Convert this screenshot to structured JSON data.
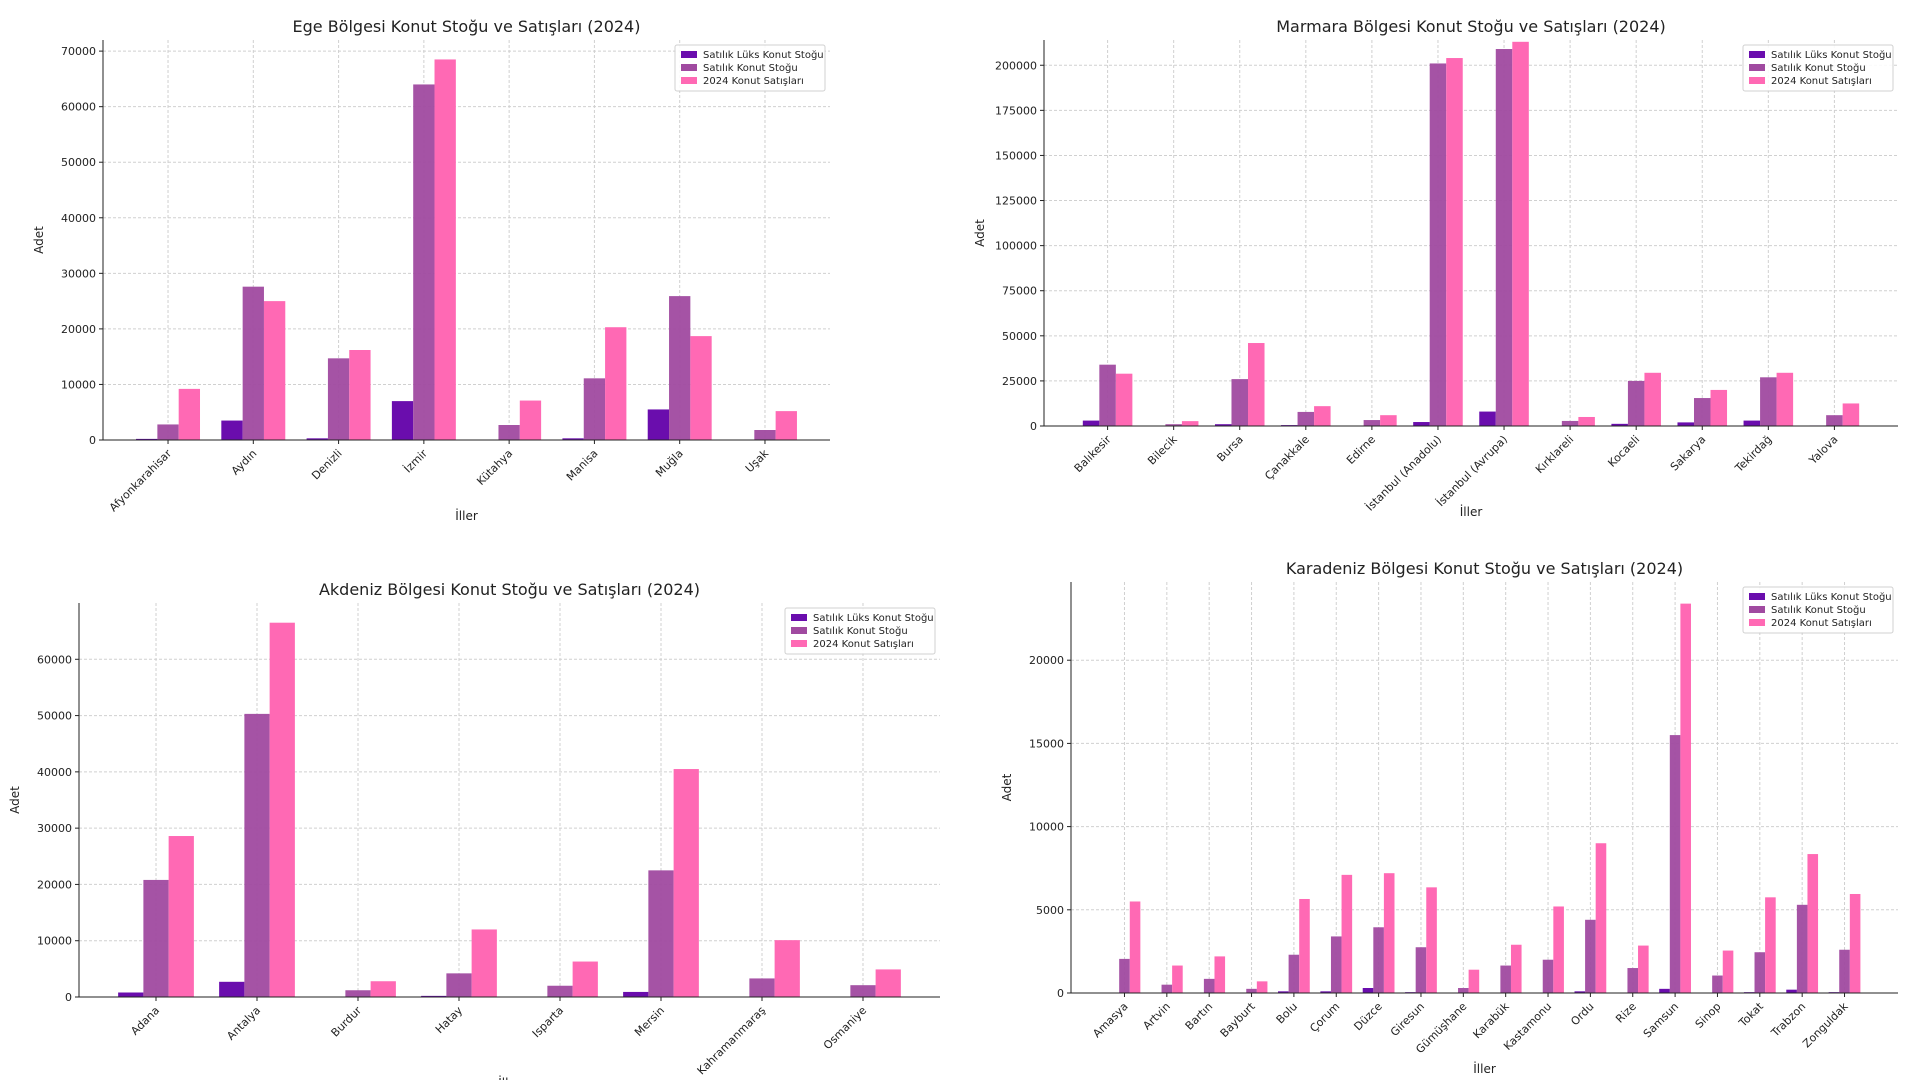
{
  "colors": {
    "lux": "#6a0dad",
    "stock": "#a04aa0",
    "sales": "#ff69b4"
  },
  "chart_data": [
    {
      "type": "bar",
      "title": "Ege Bölgesi Konut Stoğu ve Satışları (2024)",
      "xlabel": "İller",
      "ylabel": "Adet",
      "ylim": [
        0,
        72000
      ],
      "yticks": [
        0,
        10000,
        20000,
        30000,
        40000,
        50000,
        60000,
        70000
      ],
      "grid": true,
      "legend": "upper-right",
      "categories": [
        "Afyonkarahisar",
        "Aydın",
        "Denizli",
        "İzmir",
        "Kütahya",
        "Manisa",
        "Muğla",
        "Uşak"
      ],
      "series": [
        {
          "name": "Satılık Lüks Konut Stoğu",
          "values": [
            200,
            3500,
            300,
            7000,
            0,
            300,
            5500,
            0
          ]
        },
        {
          "name": "Satılık Konut Stoğu",
          "values": [
            2800,
            27600,
            14700,
            64000,
            2700,
            11100,
            25900,
            1800
          ]
        },
        {
          "name": "2024 Konut Satışları",
          "values": [
            9200,
            25000,
            16200,
            68500,
            7100,
            20300,
            18700,
            5200
          ]
        }
      ]
    },
    {
      "type": "bar",
      "title": "Marmara Bölgesi Konut Stoğu ve Satışları (2024)",
      "xlabel": "İller",
      "ylabel": "Adet",
      "ylim": [
        0,
        214000
      ],
      "yticks": [
        0,
        25000,
        50000,
        75000,
        100000,
        125000,
        150000,
        175000,
        200000
      ],
      "grid": true,
      "legend": "upper-right",
      "categories": [
        "Balıkesir",
        "Bilecik",
        "Bursa",
        "Çanakkale",
        "Edirne",
        "İstanbul (Anadolu)",
        "İstanbul (Avrupa)",
        "Kırklareli",
        "Kocaeli",
        "Sakarya",
        "Tekirdağ",
        "Yalova"
      ],
      "series": [
        {
          "name": "Satılık Lüks Konut Stoğu",
          "values": [
            3000,
            200,
            1000,
            500,
            100,
            2200,
            8000,
            100,
            1200,
            2000,
            3000,
            300
          ]
        },
        {
          "name": "Satılık Konut Stoğu",
          "values": [
            34000,
            1000,
            26000,
            7800,
            3300,
            201000,
            209000,
            2800,
            25000,
            15500,
            27000,
            6000
          ]
        },
        {
          "name": "2024 Konut Satışları",
          "values": [
            29000,
            2700,
            46000,
            11000,
            6000,
            204000,
            213000,
            5000,
            29500,
            20000,
            29500,
            12500
          ]
        }
      ]
    },
    {
      "type": "bar",
      "title": "Akdeniz Bölgesi Konut Stoğu ve Satışları (2024)",
      "xlabel": "İller",
      "ylabel": "Adet",
      "ylim": [
        0,
        70000
      ],
      "yticks": [
        0,
        10000,
        20000,
        30000,
        40000,
        50000,
        60000
      ],
      "grid": true,
      "legend": "upper-right",
      "categories": [
        "Adana",
        "Antalya",
        "Burdur",
        "Hatay",
        "Isparta",
        "Mersin",
        "Kahramanmaraş",
        "Osmaniye"
      ],
      "series": [
        {
          "name": "Satılık Lüks Konut Stoğu",
          "values": [
            800,
            2700,
            0,
            200,
            0,
            900,
            0,
            0
          ]
        },
        {
          "name": "Satılık Konut Stoğu",
          "values": [
            20800,
            50300,
            1200,
            4200,
            2000,
            22500,
            3300,
            2100
          ]
        },
        {
          "name": "2024 Konut Satışları",
          "values": [
            28600,
            66500,
            2800,
            12000,
            6300,
            40500,
            10100,
            4900
          ]
        }
      ]
    },
    {
      "type": "bar",
      "title": "Karadeniz Bölgesi Konut Stoğu ve Satışları (2024)",
      "xlabel": "İller",
      "ylabel": "Adet",
      "ylim": [
        0,
        24700
      ],
      "yticks": [
        0,
        5000,
        10000,
        15000,
        20000
      ],
      "grid": true,
      "legend": "upper-right",
      "categories": [
        "Amasya",
        "Artvin",
        "Bartın",
        "Bayburt",
        "Bolu",
        "Çorum",
        "Düzce",
        "Giresun",
        "Gümüşhane",
        "Karabük",
        "Kastamonu",
        "Ordu",
        "Rize",
        "Samsun",
        "Sinop",
        "Tokat",
        "Trabzon",
        "Zonguldak"
      ],
      "series": [
        {
          "name": "Satılık Lüks Konut Stoğu",
          "values": [
            0,
            0,
            0,
            0,
            100,
            100,
            300,
            50,
            0,
            0,
            0,
            100,
            0,
            250,
            0,
            50,
            200,
            50
          ]
        },
        {
          "name": "Satılık Konut Stoğu",
          "values": [
            2050,
            500,
            850,
            250,
            2300,
            3400,
            3950,
            2750,
            300,
            1650,
            2000,
            4400,
            1500,
            15500,
            1050,
            2450,
            5300,
            2600
          ]
        },
        {
          "name": "2024 Konut Satışları",
          "values": [
            5500,
            1650,
            2200,
            700,
            5650,
            7100,
            7200,
            6350,
            1400,
            2900,
            5200,
            9000,
            2850,
            23400,
            2550,
            5750,
            8350,
            5950
          ]
        }
      ]
    }
  ]
}
